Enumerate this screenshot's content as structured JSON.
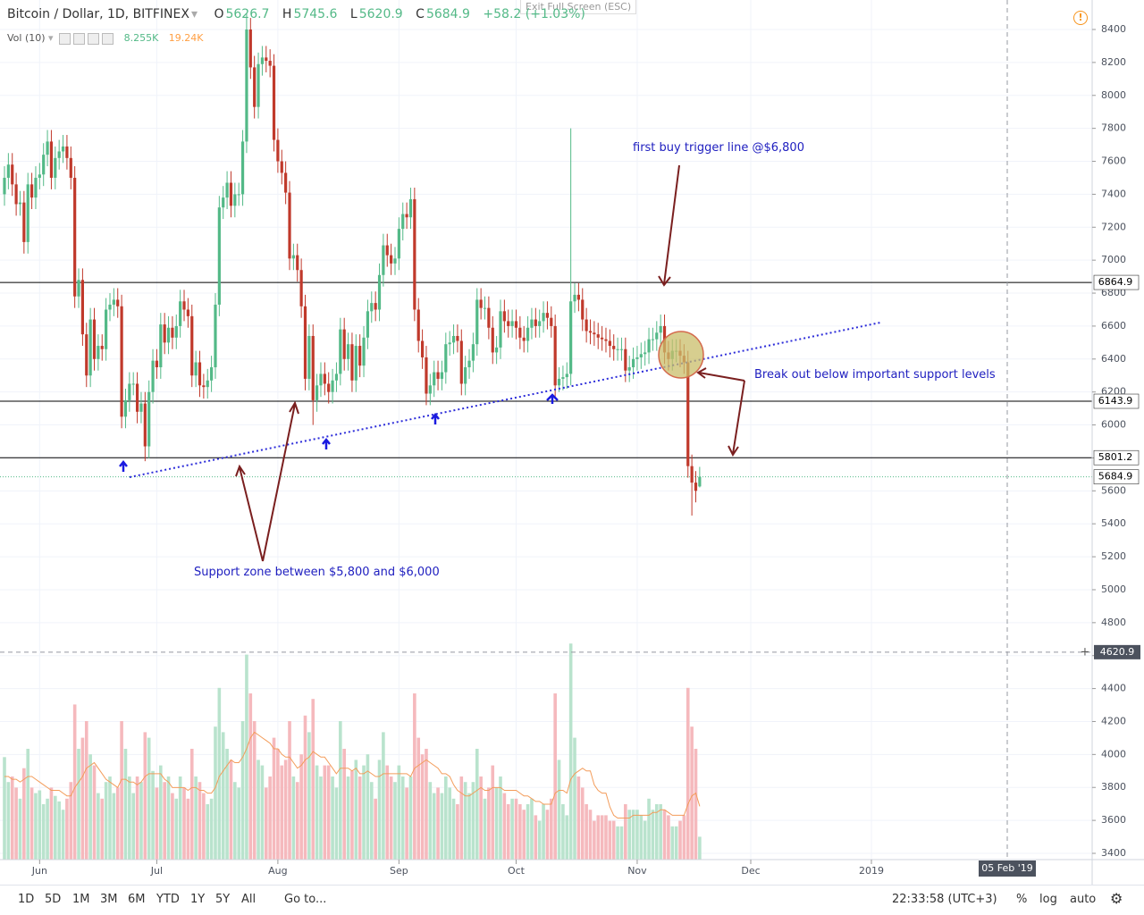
{
  "ui": {
    "title": "Bitcoin / Dollar, 1D, BITFINEX",
    "ohlc_prefixes": [
      "O",
      "H",
      "L",
      "C"
    ],
    "change": "+58.2 (+1.03%)",
    "fullscreen": "Exit Full Screen (ESC)",
    "vol_label": "Vol (10)",
    "vol_last": "8.255K",
    "vol_ma": "19.24K",
    "crosshair_date": "05 Feb '19",
    "crosshair_price": 4620.9,
    "timeframes": [
      "1D",
      "5D",
      "1M",
      "3M",
      "6M",
      "YTD",
      "1Y",
      "5Y",
      "All"
    ],
    "goto": "Go to...",
    "clock": "22:33:58 (UTC+3)",
    "scale_buttons": [
      "%",
      "log",
      "auto"
    ]
  },
  "annotations": {
    "buy_trigger": "first buy trigger line @$6,800",
    "breakout": "Break out below important support levels",
    "support_zone": "Support zone between $5,800 and $6,000"
  },
  "chart_data": {
    "type": "candlestick",
    "categories": [
      null,
      null,
      null,
      null,
      null,
      null,
      null,
      null,
      null,
      "Jun",
      null,
      null,
      null,
      null,
      null,
      null,
      null,
      null,
      null,
      null,
      null,
      null,
      null,
      null,
      null,
      null,
      null,
      null,
      null,
      null,
      null,
      null,
      null,
      null,
      null,
      null,
      null,
      null,
      null,
      "Jul",
      null,
      null,
      null,
      null,
      null,
      null,
      null,
      null,
      null,
      null,
      null,
      null,
      null,
      null,
      null,
      null,
      null,
      null,
      null,
      null,
      null,
      null,
      null,
      null,
      null,
      null,
      null,
      null,
      null,
      null,
      "Aug",
      null,
      null,
      null,
      null,
      null,
      null,
      null,
      null,
      null,
      null,
      null,
      null,
      null,
      null,
      null,
      null,
      null,
      null,
      null,
      null,
      null,
      null,
      null,
      null,
      null,
      null,
      null,
      null,
      null,
      null,
      "Sep",
      null,
      null,
      null,
      null,
      null,
      null,
      null,
      null,
      null,
      null,
      null,
      null,
      null,
      null,
      null,
      null,
      null,
      null,
      null,
      null,
      null,
      null,
      null,
      null,
      null,
      null,
      null,
      null,
      null,
      "Oct",
      null,
      null,
      null,
      null,
      null,
      null,
      null,
      null,
      null,
      null,
      null,
      null,
      null,
      null,
      null,
      null,
      null,
      null,
      null,
      null,
      null,
      null,
      null,
      null,
      null,
      null,
      null,
      null,
      null,
      null,
      "Nov",
      null,
      null,
      null,
      null,
      null,
      null,
      null,
      null,
      null,
      null,
      null,
      null,
      null,
      null,
      null,
      null
    ],
    "more_categories": [
      "Dec",
      "2019"
    ],
    "open": [
      7400,
      7500,
      7580,
      7460,
      7340,
      7350,
      7110,
      7460,
      7380,
      7500,
      7520,
      7640,
      7720,
      7500,
      7620,
      7660,
      7690,
      7620,
      7500,
      6780,
      6880,
      6550,
      6300,
      6640,
      6400,
      6480,
      6460,
      6700,
      6730,
      6760,
      6720,
      6050,
      6150,
      6250,
      6250,
      6080,
      6130,
      5870,
      6200,
      6390,
      6350,
      6610,
      6500,
      6590,
      6530,
      6600,
      6750,
      6700,
      6660,
      6300,
      6380,
      6240,
      6230,
      6270,
      6350,
      6730,
      7320,
      7380,
      7470,
      7330,
      7400,
      7400,
      7720,
      8400,
      8170,
      7930,
      8190,
      8230,
      8210,
      8180,
      7730,
      7600,
      7530,
      7410,
      7010,
      7030,
      6940,
      6720,
      6280,
      6540,
      6150,
      6240,
      6310,
      6250,
      6200,
      6270,
      6310,
      6580,
      6400,
      6490,
      6270,
      6480,
      6360,
      6530,
      6690,
      6740,
      6700,
      6910,
      7090,
      7030,
      6980,
      7010,
      7190,
      7280,
      7260,
      7370,
      6700,
      6510,
      6410,
      6190,
      6240,
      6320,
      6280,
      6320,
      6490,
      6500,
      6540,
      6510,
      6250,
      6350,
      6390,
      6490,
      6760,
      6710,
      6710,
      6590,
      6440,
      6470,
      6690,
      6630,
      6600,
      6630,
      6590,
      6530,
      6510,
      6590,
      6640,
      6600,
      6630,
      6680,
      6650,
      6600,
      6240,
      6280,
      6290,
      6310,
      6750,
      6790,
      6760,
      6640,
      6570,
      6560,
      6550,
      6530,
      6520,
      6510,
      6480,
      6460,
      6460,
      6460,
      6330,
      6350,
      6400,
      6410,
      6430,
      6440,
      6520,
      6520,
      6560,
      6600,
      6440,
      6400,
      6450,
      6450,
      6420,
      6380,
      5750,
      5650,
      5626.7
    ],
    "high": [
      7570,
      7650,
      7650,
      7530,
      7420,
      7420,
      7530,
      7530,
      7570,
      7590,
      7710,
      7790,
      7790,
      7690,
      7730,
      7760,
      7760,
      7690,
      7570,
      6950,
      6950,
      6620,
      6710,
      6710,
      6550,
      6550,
      6770,
      6800,
      6830,
      6830,
      6790,
      6220,
      6320,
      6320,
      6320,
      6200,
      6200,
      6270,
      6460,
      6460,
      6680,
      6680,
      6660,
      6660,
      6670,
      6820,
      6820,
      6770,
      6730,
      6450,
      6450,
      6310,
      6340,
      6420,
      6800,
      7390,
      7450,
      7540,
      7540,
      7470,
      7470,
      7790,
      8500,
      8470,
      8240,
      8260,
      8300,
      8300,
      8280,
      8250,
      7800,
      7670,
      7600,
      7480,
      7100,
      7100,
      7010,
      6790,
      6610,
      6610,
      6310,
      6380,
      6380,
      6320,
      6340,
      6380,
      6650,
      6650,
      6560,
      6560,
      6550,
      6550,
      6600,
      6760,
      6810,
      6810,
      6980,
      7160,
      7160,
      7100,
      7080,
      7260,
      7350,
      7350,
      7440,
      7440,
      6770,
      6580,
      6480,
      6310,
      6390,
      6390,
      6390,
      6560,
      6570,
      6610,
      6610,
      6580,
      6420,
      6460,
      6560,
      6830,
      6830,
      6780,
      6780,
      6660,
      6540,
      6760,
      6760,
      6700,
      6700,
      6700,
      6660,
      6600,
      6660,
      6710,
      6710,
      6700,
      6750,
      6750,
      6720,
      6670,
      6350,
      6360,
      6380,
      7800,
      6860,
      6860,
      6830,
      6710,
      6640,
      6630,
      6620,
      6600,
      6590,
      6580,
      6550,
      6530,
      6530,
      6530,
      6420,
      6470,
      6480,
      6500,
      6510,
      6590,
      6590,
      6630,
      6670,
      6670,
      6510,
      6520,
      6520,
      6520,
      6490,
      6450,
      5820,
      5720,
      5745.6
    ],
    "low": [
      7330,
      7430,
      7390,
      7270,
      7270,
      7040,
      7040,
      7310,
      7310,
      7430,
      7450,
      7570,
      7430,
      7430,
      7550,
      7590,
      7550,
      7430,
      6710,
      6710,
      6480,
      6230,
      6230,
      6330,
      6330,
      6390,
      6390,
      6630,
      6660,
      6650,
      5980,
      5980,
      6080,
      6180,
      6010,
      6010,
      5780,
      5800,
      6130,
      6280,
      6280,
      6430,
      6430,
      6460,
      6460,
      6530,
      6630,
      6590,
      6230,
      6230,
      6170,
      6160,
      6160,
      6200,
      6280,
      6660,
      7250,
      7310,
      7260,
      7260,
      7330,
      7330,
      7650,
      8100,
      7860,
      7860,
      8120,
      8140,
      8110,
      7660,
      7530,
      7460,
      7340,
      6940,
      6940,
      6870,
      6650,
      6210,
      6210,
      6000,
      6080,
      6170,
      6180,
      6130,
      6130,
      6200,
      6240,
      6330,
      6330,
      6200,
      6200,
      6290,
      6290,
      6460,
      6620,
      6630,
      6630,
      6840,
      6960,
      6910,
      6910,
      6940,
      7120,
      7190,
      7190,
      6630,
      6440,
      6340,
      6120,
      6120,
      6170,
      6210,
      6210,
      6250,
      6420,
      6430,
      6440,
      6180,
      6180,
      6280,
      6320,
      6420,
      6640,
      6640,
      6520,
      6370,
      6370,
      6400,
      6560,
      6530,
      6530,
      6520,
      6460,
      6440,
      6440,
      6520,
      6530,
      6530,
      6560,
      6580,
      6530,
      6170,
      6200,
      6210,
      6220,
      6240,
      6680,
      6690,
      6570,
      6500,
      6490,
      6480,
      6460,
      6450,
      6440,
      6410,
      6390,
      6390,
      6390,
      6260,
      6260,
      6280,
      6330,
      6340,
      6360,
      6370,
      6450,
      6450,
      6490,
      6370,
      6330,
      6330,
      6380,
      6350,
      6310,
      5680,
      5450,
      5530,
      5620.9
    ],
    "close": [
      7500,
      7580,
      7460,
      7340,
      7350,
      7110,
      7460,
      7380,
      7500,
      7520,
      7640,
      7720,
      7500,
      7620,
      7660,
      7690,
      7620,
      7500,
      6780,
      6880,
      6550,
      6300,
      6640,
      6400,
      6480,
      6460,
      6700,
      6730,
      6760,
      6720,
      6050,
      6150,
      6250,
      6250,
      6080,
      6130,
      5870,
      6200,
      6390,
      6350,
      6610,
      6500,
      6590,
      6530,
      6600,
      6750,
      6700,
      6660,
      6300,
      6380,
      6240,
      6230,
      6270,
      6350,
      6730,
      7320,
      7380,
      7470,
      7330,
      7400,
      7400,
      7720,
      8400,
      8170,
      7930,
      8190,
      8230,
      8210,
      8180,
      7730,
      7600,
      7530,
      7410,
      7010,
      7030,
      6940,
      6720,
      6280,
      6540,
      6150,
      6240,
      6310,
      6250,
      6200,
      6270,
      6310,
      6580,
      6400,
      6490,
      6270,
      6480,
      6360,
      6530,
      6690,
      6740,
      6700,
      6910,
      7090,
      7030,
      6980,
      7010,
      7190,
      7280,
      7260,
      7370,
      6700,
      6510,
      6410,
      6190,
      6240,
      6320,
      6280,
      6320,
      6490,
      6500,
      6540,
      6510,
      6250,
      6350,
      6390,
      6490,
      6760,
      6710,
      6710,
      6590,
      6440,
      6470,
      6690,
      6630,
      6600,
      6630,
      6590,
      6530,
      6510,
      6590,
      6640,
      6600,
      6630,
      6680,
      6650,
      6600,
      6240,
      6280,
      6290,
      6310,
      6750,
      6790,
      6760,
      6640,
      6570,
      6560,
      6550,
      6530,
      6520,
      6510,
      6480,
      6460,
      6460,
      6460,
      6330,
      6350,
      6400,
      6410,
      6430,
      6440,
      6520,
      6520,
      6560,
      6600,
      6440,
      6400,
      6450,
      6450,
      6420,
      6380,
      5750,
      5650,
      5600,
      5684.9
    ],
    "volume": [
      37,
      28,
      30,
      26,
      22,
      33,
      40,
      26,
      24,
      25,
      20,
      22,
      26,
      23,
      21,
      18,
      22,
      28,
      56,
      40,
      44,
      50,
      38,
      34,
      24,
      22,
      28,
      30,
      24,
      26,
      50,
      40,
      30,
      24,
      30,
      28,
      46,
      44,
      32,
      26,
      34,
      28,
      30,
      24,
      22,
      30,
      26,
      22,
      40,
      30,
      28,
      24,
      20,
      22,
      48,
      62,
      46,
      40,
      36,
      28,
      26,
      50,
      74,
      60,
      50,
      36,
      34,
      26,
      30,
      44,
      40,
      34,
      36,
      50,
      30,
      28,
      38,
      52,
      46,
      58,
      34,
      30,
      34,
      34,
      30,
      26,
      50,
      40,
      30,
      32,
      36,
      30,
      34,
      38,
      28,
      22,
      36,
      46,
      34,
      30,
      28,
      34,
      30,
      26,
      30,
      60,
      44,
      38,
      40,
      28,
      24,
      26,
      24,
      30,
      26,
      22,
      20,
      30,
      28,
      24,
      28,
      40,
      30,
      22,
      26,
      34,
      26,
      30,
      24,
      20,
      22,
      22,
      20,
      18,
      20,
      22,
      16,
      14,
      20,
      18,
      22,
      60,
      36,
      20,
      16,
      78,
      44,
      30,
      26,
      20,
      18,
      14,
      16,
      16,
      16,
      14,
      14,
      12,
      12,
      20,
      18,
      18,
      18,
      16,
      14,
      22,
      18,
      20,
      20,
      18,
      16,
      12,
      12,
      14,
      16,
      62,
      48,
      40,
      8.255
    ],
    "volume_ma": [
      30,
      30,
      29,
      29,
      28,
      29,
      30,
      30,
      29,
      28,
      27,
      26,
      25,
      25,
      25,
      24,
      23,
      23,
      26,
      28,
      30,
      33,
      34,
      35,
      33,
      31,
      29,
      28,
      27,
      26,
      29,
      29,
      28,
      28,
      27,
      28,
      30,
      31,
      31,
      31,
      31,
      29,
      28,
      26,
      26,
      26,
      26,
      25,
      26,
      26,
      25,
      25,
      24,
      24,
      26,
      30,
      32,
      34,
      36,
      35,
      35,
      37,
      40,
      44,
      46,
      45,
      44,
      43,
      42,
      40,
      40,
      38,
      37,
      37,
      35,
      33,
      34,
      36,
      37,
      39,
      38,
      37,
      37,
      35,
      33,
      31,
      33,
      33,
      33,
      32,
      33,
      31,
      31,
      32,
      31,
      30,
      30,
      31,
      31,
      31,
      31,
      31,
      31,
      31,
      30,
      33,
      34,
      35,
      36,
      35,
      34,
      33,
      31,
      31,
      30,
      27,
      25,
      24,
      23,
      23,
      24,
      25,
      26,
      25,
      25,
      26,
      26,
      26,
      25,
      25,
      25,
      25,
      24,
      23,
      23,
      22,
      21,
      21,
      20,
      20,
      20,
      24,
      25,
      25,
      24,
      29,
      31,
      32,
      33,
      32,
      32,
      27,
      25,
      24,
      24,
      19,
      16,
      15,
      15,
      15,
      15,
      16,
      16,
      16,
      16,
      16,
      17,
      17,
      18,
      18,
      17,
      16,
      16,
      16,
      16,
      20,
      23,
      24,
      19.24
    ],
    "up_color": "#53b987",
    "down_color": "#c0392b",
    "volume_up_color": "#b9e3cd",
    "volume_down_color": "#f5b9bd",
    "volume_ma_color": "#f39c5a",
    "ylim": [
      3362,
      8579
    ],
    "yticks": [
      3400,
      3600,
      3800,
      4000,
      4200,
      4400,
      4600,
      4800,
      5000,
      5200,
      5400,
      5600,
      5800,
      6000,
      6200,
      6400,
      6600,
      6800,
      7000,
      7200,
      7400,
      7600,
      7800,
      8000,
      8200,
      8400
    ],
    "volume_ylim": [
      0,
      80
    ],
    "hlines": [
      6864.9,
      6143.9,
      5801.2
    ],
    "grid": true
  }
}
